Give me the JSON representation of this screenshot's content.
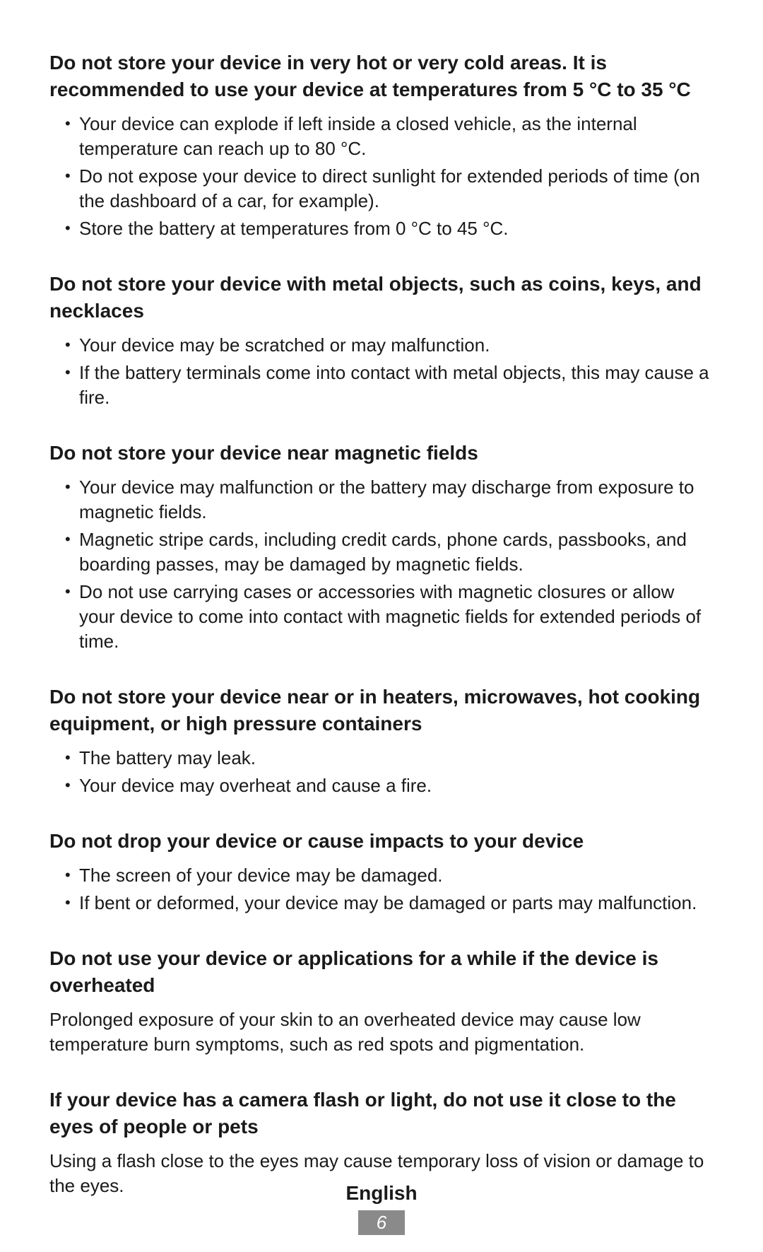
{
  "sections": [
    {
      "heading": "Do not store your device in very hot or very cold areas. It is recommended to use your device at temperatures from 5 °C to 35 °C",
      "bullets": [
        "Your device can explode if left inside a closed vehicle, as the internal temperature can reach up to 80 °C.",
        "Do not expose your device to direct sunlight for extended periods of time (on the dashboard of a car, for example).",
        "Store the battery at temperatures from 0 °C to 45 °C."
      ]
    },
    {
      "heading": "Do not store your device with metal objects, such as coins, keys, and necklaces",
      "bullets": [
        "Your device may be scratched or may malfunction.",
        "If the battery terminals come into contact with metal objects, this may cause a fire."
      ]
    },
    {
      "heading": "Do not store your device near magnetic fields",
      "bullets": [
        "Your device may malfunction or the battery may discharge from exposure to magnetic fields.",
        "Magnetic stripe cards, including credit cards, phone cards, passbooks, and boarding passes, may be damaged by magnetic fields.",
        "Do not use carrying cases or accessories with magnetic closures or allow your device to come into contact with magnetic fields for extended periods of time."
      ]
    },
    {
      "heading": "Do not store your device near or in heaters, microwaves, hot cooking equipment, or high pressure containers",
      "bullets": [
        "The battery may leak.",
        "Your device may overheat and cause a fire."
      ]
    },
    {
      "heading": "Do not drop your device or cause impacts to your device",
      "bullets": [
        "The screen of your device may be damaged.",
        "If bent or deformed, your device may be damaged or parts may malfunction."
      ]
    },
    {
      "heading": "Do not use your device or applications for a while if the device is overheated",
      "para": "Prolonged exposure of your skin to an overheated device may cause low temperature burn symptoms, such as red spots and pigmentation."
    },
    {
      "heading": "If your device has a camera flash or light, do not use it close to the eyes of people or pets",
      "para": "Using a flash close to the eyes may cause temporary loss of vision or damage to the eyes."
    }
  ],
  "footer": {
    "language": "English",
    "page": "6"
  },
  "style": {
    "text_color": "#1a1a1a",
    "background_color": "#ffffff",
    "heading_fontsize": 28,
    "body_fontsize": 26,
    "page_badge_bg": "#8a8a8a",
    "page_badge_fg": "#ffffff"
  }
}
